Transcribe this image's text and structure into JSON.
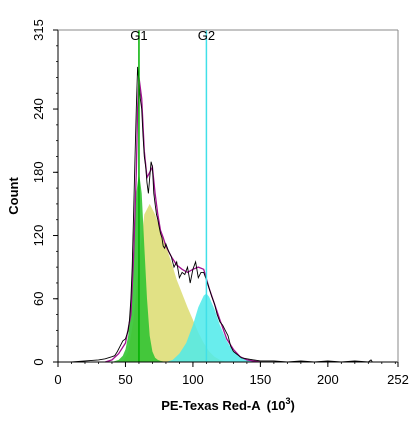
{
  "chart_data": {
    "type": "area",
    "xlabel": "PE-Texas Red-A",
    "xlabel_unit_base": "(10",
    "xlabel_unit_exp": "3",
    "xlabel_unit_close": ")",
    "ylabel": "Count",
    "xlim": [
      0,
      252
    ],
    "ylim": [
      0,
      315
    ],
    "xticks": [
      "0",
      "50",
      "100",
      "150",
      "200",
      "252"
    ],
    "xtick_values": [
      0,
      50,
      100,
      150,
      200,
      252
    ],
    "yticks": [
      "0",
      "60",
      "120",
      "180",
      "240",
      "315"
    ],
    "ytick_values": [
      0,
      60,
      120,
      180,
      240,
      315
    ],
    "grid": false,
    "legend": "none",
    "markers": [
      {
        "label": "G1",
        "x": 60,
        "color": "#00b000"
      },
      {
        "label": "G2",
        "x": 110,
        "color": "#40e0e8"
      }
    ],
    "series": [
      {
        "role": "G1 fit",
        "color": "#33c433",
        "x": [
          40,
          45,
          48,
          50,
          52,
          54,
          56,
          58,
          60,
          62,
          64,
          66,
          68,
          70,
          72,
          74,
          76,
          80
        ],
        "y": [
          0,
          2,
          6,
          12,
          25,
          60,
          110,
          160,
          180,
          160,
          110,
          60,
          25,
          10,
          4,
          2,
          1,
          0
        ]
      },
      {
        "role": "S-phase fit",
        "color": "#dcdc70",
        "x": [
          48,
          52,
          56,
          60,
          64,
          68,
          72,
          76,
          80,
          84,
          88,
          92,
          96,
          100,
          104,
          108,
          112,
          116,
          120,
          125
        ],
        "y": [
          0,
          10,
          40,
          95,
          140,
          150,
          140,
          125,
          110,
          95,
          78,
          65,
          52,
          40,
          28,
          18,
          10,
          5,
          2,
          0
        ]
      },
      {
        "role": "G2 fit",
        "color": "#4deaea",
        "x": [
          80,
          85,
          90,
          95,
          100,
          104,
          108,
          110,
          112,
          116,
          120,
          125,
          130,
          135,
          140,
          145,
          150
        ],
        "y": [
          0,
          2,
          8,
          18,
          35,
          52,
          63,
          65,
          62,
          50,
          35,
          20,
          10,
          5,
          2,
          1,
          0
        ]
      },
      {
        "role": "model fit",
        "color": "#a01090",
        "x": [
          35,
          40,
          45,
          50,
          54,
          56,
          58,
          59,
          60,
          62,
          64,
          66,
          68,
          70,
          72,
          74,
          76,
          78,
          80,
          84,
          88,
          92,
          96,
          100,
          104,
          108,
          112,
          116,
          120,
          125,
          130,
          135,
          140,
          150
        ],
        "y": [
          0,
          2,
          8,
          18,
          45,
          100,
          180,
          240,
          270,
          250,
          200,
          175,
          180,
          185,
          160,
          140,
          125,
          118,
          110,
          100,
          92,
          88,
          85,
          88,
          90,
          88,
          70,
          55,
          40,
          22,
          12,
          5,
          2,
          0
        ]
      },
      {
        "role": "raw histogram",
        "color": "#000000",
        "x": [
          0,
          10,
          20,
          30,
          35,
          40,
          42,
          44,
          46,
          48,
          50,
          52,
          53,
          54,
          55,
          56,
          57,
          58,
          59,
          60,
          61,
          62,
          63,
          64,
          65,
          66,
          67,
          68,
          69,
          70,
          71,
          72,
          73,
          74,
          75,
          76,
          77,
          78,
          79,
          80,
          82,
          84,
          86,
          88,
          90,
          92,
          94,
          96,
          98,
          100,
          102,
          104,
          106,
          108,
          110,
          112,
          114,
          116,
          118,
          120,
          122,
          124,
          126,
          128,
          130,
          132,
          134,
          136,
          140,
          145,
          150,
          160,
          170,
          180,
          190,
          200,
          210,
          220,
          230,
          232,
          233,
          235,
          252
        ],
        "y": [
          0,
          0,
          1,
          2,
          3,
          5,
          6,
          10,
          15,
          20,
          22,
          30,
          40,
          60,
          90,
          140,
          190,
          240,
          280,
          265,
          250,
          240,
          215,
          195,
          185,
          170,
          160,
          175,
          190,
          185,
          160,
          150,
          140,
          135,
          128,
          122,
          118,
          110,
          108,
          112,
          105,
          100,
          90,
          95,
          80,
          85,
          83,
          90,
          75,
          88,
          95,
          80,
          85,
          85,
          78,
          70,
          62,
          55,
          45,
          38,
          35,
          30,
          25,
          15,
          10,
          8,
          6,
          4,
          3,
          2,
          1,
          1,
          0,
          1,
          0,
          1,
          0,
          1,
          0,
          2,
          0,
          0,
          0
        ]
      }
    ]
  }
}
